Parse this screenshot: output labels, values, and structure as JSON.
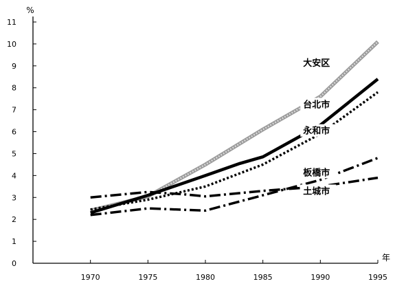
{
  "chart_data": {
    "type": "line",
    "title": "",
    "xlabel": "年",
    "ylabel": "%",
    "xlim": [
      1965,
      1995
    ],
    "ylim": [
      0,
      11
    ],
    "x_ticks": [
      1970,
      1975,
      1980,
      1985,
      1990,
      1995
    ],
    "y_ticks": [
      0,
      1,
      2,
      3,
      4,
      5,
      6,
      7,
      8,
      9,
      10,
      11
    ],
    "grid": false,
    "legend": "none (series labelled directly on lines)",
    "series": [
      {
        "name": "大安区",
        "style": "grey-hatched-thick",
        "color": "#9a9a9a",
        "points": [
          [
            1970,
            2.4
          ],
          [
            1975,
            3.05
          ],
          [
            1980,
            4.5
          ],
          [
            1985,
            6.1
          ],
          [
            1990,
            7.6
          ],
          [
            1995,
            10.1
          ]
        ]
      },
      {
        "name": "台北市",
        "style": "solid-thick",
        "color": "#000000",
        "points": [
          [
            1970,
            2.3
          ],
          [
            1975,
            3.1
          ],
          [
            1980,
            4.0
          ],
          [
            1983,
            4.55
          ],
          [
            1985,
            4.85
          ],
          [
            1990,
            6.3
          ],
          [
            1995,
            8.4
          ]
        ]
      },
      {
        "name": "永和市",
        "style": "dotted",
        "color": "#000000",
        "points": [
          [
            1970,
            2.45
          ],
          [
            1975,
            2.9
          ],
          [
            1980,
            3.5
          ],
          [
            1985,
            4.5
          ],
          [
            1990,
            5.9
          ],
          [
            1995,
            7.8
          ]
        ]
      },
      {
        "name": "板橋市",
        "style": "dash-dot",
        "color": "#000000",
        "points": [
          [
            1970,
            2.2
          ],
          [
            1975,
            2.5
          ],
          [
            1980,
            2.4
          ],
          [
            1985,
            3.1
          ],
          [
            1990,
            3.8
          ],
          [
            1995,
            4.8
          ]
        ]
      },
      {
        "name": "土城市",
        "style": "dash-dot",
        "color": "#000000",
        "points": [
          [
            1970,
            3.0
          ],
          [
            1975,
            3.25
          ],
          [
            1978,
            3.15
          ],
          [
            1980,
            3.05
          ],
          [
            1985,
            3.3
          ],
          [
            1990,
            3.5
          ],
          [
            1995,
            3.9
          ]
        ]
      }
    ]
  }
}
